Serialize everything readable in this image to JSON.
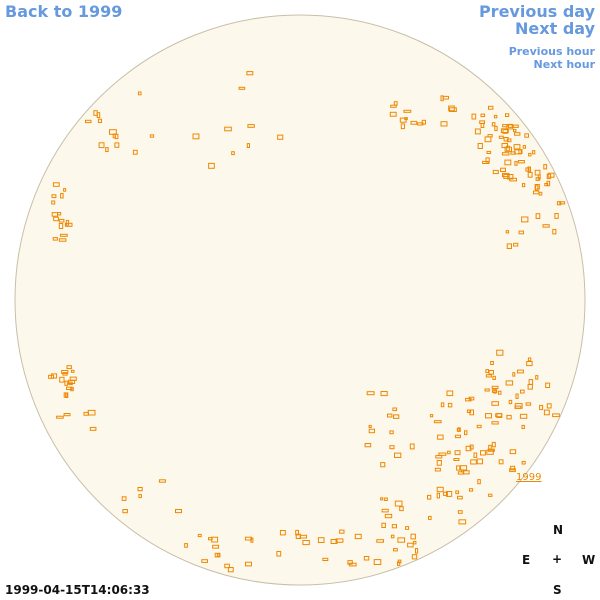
{
  "nav": {
    "back": "Back to 1999",
    "previous_day": "Previous day",
    "next_day": "Next day",
    "previous_hour": "Previous hour",
    "next_hour": "Next hour"
  },
  "region_label": "1999",
  "timestamp": "1999-04-15T14:06:33",
  "compass": {
    "n": "N",
    "e": "E",
    "center": "+",
    "w": "W",
    "s": "S"
  },
  "colors": {
    "disk_fill": "#fdf8ec",
    "disk_stroke": "#c8bfa8",
    "feature": "#ee8800",
    "link": "#6699dd"
  }
}
